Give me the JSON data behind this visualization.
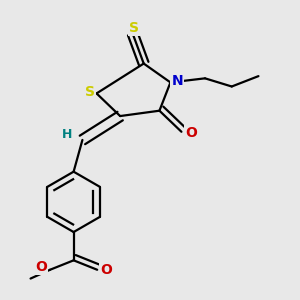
{
  "background_color": "#e8e8e8",
  "bond_color": "#000000",
  "atom_colors": {
    "S": "#cccc00",
    "N": "#0000cc",
    "O": "#cc0000",
    "H": "#008080",
    "C": "#000000"
  },
  "figsize": [
    3.0,
    3.0
  ],
  "dpi": 100,
  "lw": 1.6
}
